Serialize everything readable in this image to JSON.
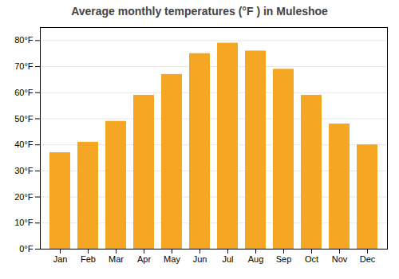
{
  "chart_data": {
    "type": "bar",
    "title": "Average monthly temperatures (°F ) in Muleshoe",
    "categories": [
      "Jan",
      "Feb",
      "Mar",
      "Apr",
      "May",
      "Jun",
      "Jul",
      "Aug",
      "Sep",
      "Oct",
      "Nov",
      "Dec"
    ],
    "values": [
      37,
      41,
      49,
      59,
      67,
      75,
      79,
      76,
      69,
      59,
      48,
      40
    ],
    "color": "#F5A623",
    "ylim": [
      0,
      85
    ],
    "yticks": [
      {
        "value": 0,
        "label": "0°F"
      },
      {
        "value": 10,
        "label": "10°F"
      },
      {
        "value": 20,
        "label": "20°F"
      },
      {
        "value": 30,
        "label": "30°F"
      },
      {
        "value": 40,
        "label": "40°F"
      },
      {
        "value": 50,
        "label": "50°F"
      },
      {
        "value": 60,
        "label": "60°F"
      },
      {
        "value": 70,
        "label": "70°F"
      },
      {
        "value": 80,
        "label": "80°F"
      }
    ],
    "grid": true
  }
}
